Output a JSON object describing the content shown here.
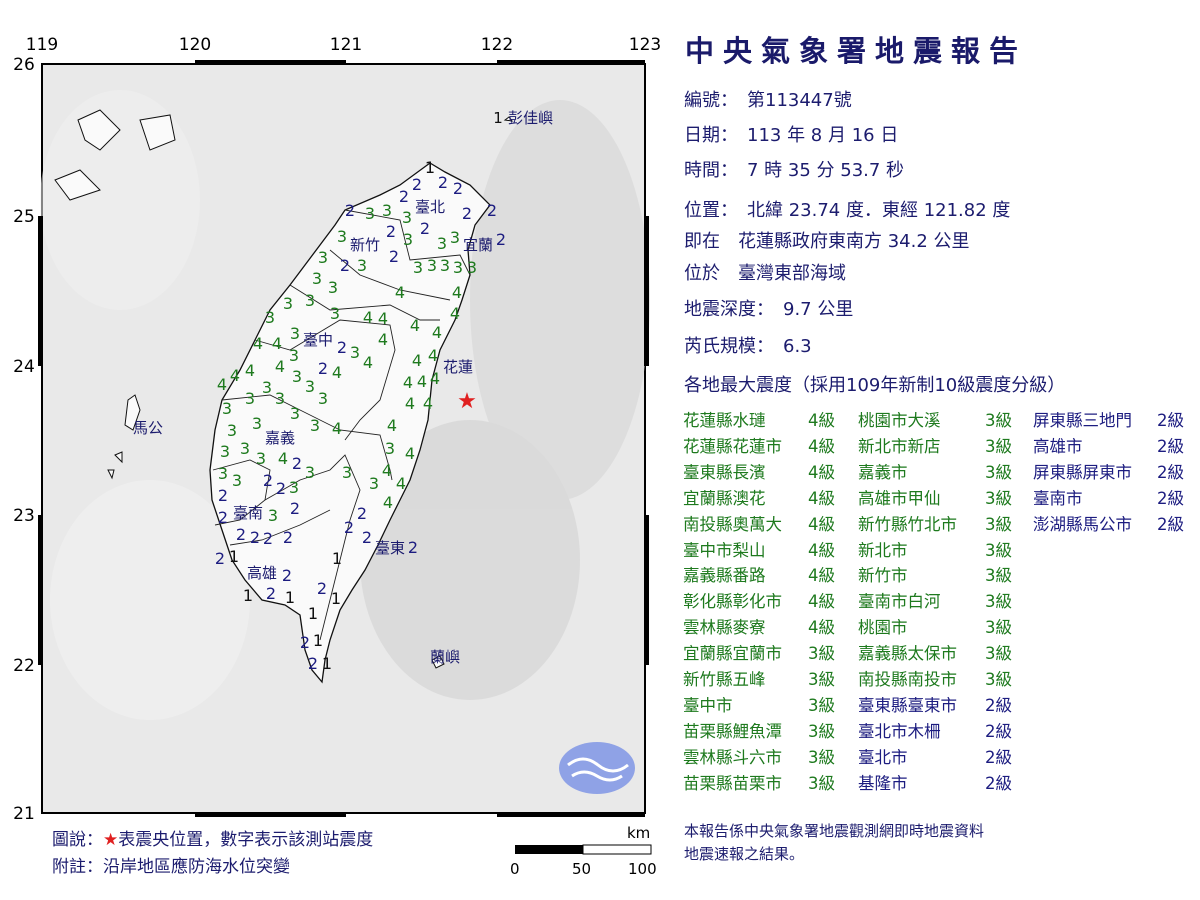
{
  "map": {
    "lon_ticks": [
      "119",
      "120",
      "121",
      "122",
      "123"
    ],
    "lat_ticks": [
      "26",
      "25",
      "24",
      "23",
      "22",
      "21"
    ],
    "place_labels": [
      "彭佳嶼",
      "臺北",
      "新竹",
      "宜蘭",
      "臺中",
      "花蓮",
      "嘉義",
      "臺南",
      "高雄",
      "臺東",
      "蘭嶼",
      "馬公"
    ],
    "station_intensities": [
      "1",
      "2",
      "2",
      "2",
      "2",
      "3",
      "2",
      "2",
      "2",
      "3",
      "3",
      "2",
      "3",
      "2",
      "3",
      "2",
      "3",
      "3",
      "3",
      "2",
      "3",
      "2",
      "3",
      "3",
      "3",
      "3",
      "3",
      "3",
      "3",
      "4",
      "4",
      "4",
      "3",
      "3",
      "3",
      "3",
      "4",
      "4",
      "4",
      "4",
      "4",
      "3",
      "4",
      "4",
      "3",
      "2",
      "3",
      "4",
      "4",
      "4",
      "4",
      "4",
      "4",
      "2",
      "4",
      "3",
      "3",
      "4",
      "4",
      "4",
      "4",
      "3",
      "3",
      "3",
      "3",
      "4",
      "4",
      "3",
      "3",
      "3",
      "3",
      "3",
      "4",
      "4",
      "3",
      "4",
      "3",
      "3",
      "3",
      "4",
      "2",
      "2",
      "2",
      "3",
      "3",
      "4",
      "3",
      "3",
      "3",
      "4",
      "3",
      "2",
      "2",
      "2",
      "4",
      "3",
      "2",
      "2",
      "2",
      "2",
      "2",
      "2",
      "2",
      "2",
      "1",
      "1",
      "2",
      "2",
      "2",
      "1",
      "1",
      "2",
      "1",
      "1",
      "2",
      "1",
      "2",
      "1",
      "1",
      "1"
    ],
    "epicenter_icon": "red-star-icon",
    "logo": "cwa-logo",
    "legend_line1_prefix": "圖說：",
    "legend_line1_suffix": "表震央位置，數字表示該測站震度",
    "legend_line2": "附註：沿岸地區應防海水位突變",
    "scale_unit": "km",
    "scale_labels": [
      "0",
      "50",
      "100"
    ],
    "colors": {
      "intensity_4": "#1e7a1e",
      "intensity_3": "#1e7a1e",
      "intensity_2": "#1c1c80",
      "intensity_1": "#111111",
      "epicenter": "#e02020"
    }
  },
  "report": {
    "title": "中央氣象署地震報告",
    "number": "編號：　第113447號",
    "date": "日期：　113 年 8 月 16 日",
    "time": "時間：　7 時 35 分 53.7 秒",
    "location": "位置：　北緯 23.74 度．東經 121.82 度",
    "relative": "即在　花蓮縣政府東南方 34.2 公里",
    "region": "位於　臺灣東部海域",
    "depth": "地震深度：　9.7 公里",
    "magnitude": "芮氏規模：　6.3",
    "intensity_header": "各地最大震度（採用109年新制10級震度分級）",
    "intensities": [
      [
        {
          "place": "花蓮縣水璉",
          "level": "4級"
        },
        {
          "place": "花蓮縣花蓮市",
          "level": "4級"
        },
        {
          "place": "臺東縣長濱",
          "level": "4級"
        },
        {
          "place": "宜蘭縣澳花",
          "level": "4級"
        },
        {
          "place": "南投縣奧萬大",
          "level": "4級"
        },
        {
          "place": "臺中市梨山",
          "level": "4級"
        },
        {
          "place": "嘉義縣番路",
          "level": "4級"
        },
        {
          "place": "彰化縣彰化市",
          "level": "4級"
        },
        {
          "place": "雲林縣麥寮",
          "level": "4級"
        },
        {
          "place": "宜蘭縣宜蘭市",
          "level": "3級"
        },
        {
          "place": "新竹縣五峰",
          "level": "3級"
        },
        {
          "place": "臺中市",
          "level": "3級"
        },
        {
          "place": "苗栗縣鯉魚潭",
          "level": "3級"
        },
        {
          "place": "雲林縣斗六市",
          "level": "3級"
        },
        {
          "place": "苗栗縣苗栗市",
          "level": "3級"
        }
      ],
      [
        {
          "place": "桃園市大溪",
          "level": "3級"
        },
        {
          "place": "新北市新店",
          "level": "3級"
        },
        {
          "place": "嘉義市",
          "level": "3級"
        },
        {
          "place": "高雄市甲仙",
          "level": "3級"
        },
        {
          "place": "新竹縣竹北市",
          "level": "3級"
        },
        {
          "place": "新北市",
          "level": "3級"
        },
        {
          "place": "新竹市",
          "level": "3級"
        },
        {
          "place": "臺南市白河",
          "level": "3級"
        },
        {
          "place": "桃園市",
          "level": "3級"
        },
        {
          "place": "嘉義縣太保市",
          "level": "3級"
        },
        {
          "place": "南投縣南投市",
          "level": "3級"
        },
        {
          "place": "臺東縣臺東市",
          "level": "2級"
        },
        {
          "place": "臺北市木柵",
          "level": "2級"
        },
        {
          "place": "臺北市",
          "level": "2級"
        },
        {
          "place": "基隆市",
          "level": "2級"
        }
      ],
      [
        {
          "place": "屏東縣三地門",
          "level": "2級"
        },
        {
          "place": "高雄市",
          "level": "2級"
        },
        {
          "place": "屏東縣屏東市",
          "level": "2級"
        },
        {
          "place": "臺南市",
          "level": "2級"
        },
        {
          "place": "澎湖縣馬公市",
          "level": "2級"
        }
      ]
    ],
    "footer_line1": "本報告係中央氣象署地震觀測網即時地震資料",
    "footer_line2": "地震速報之結果。"
  }
}
